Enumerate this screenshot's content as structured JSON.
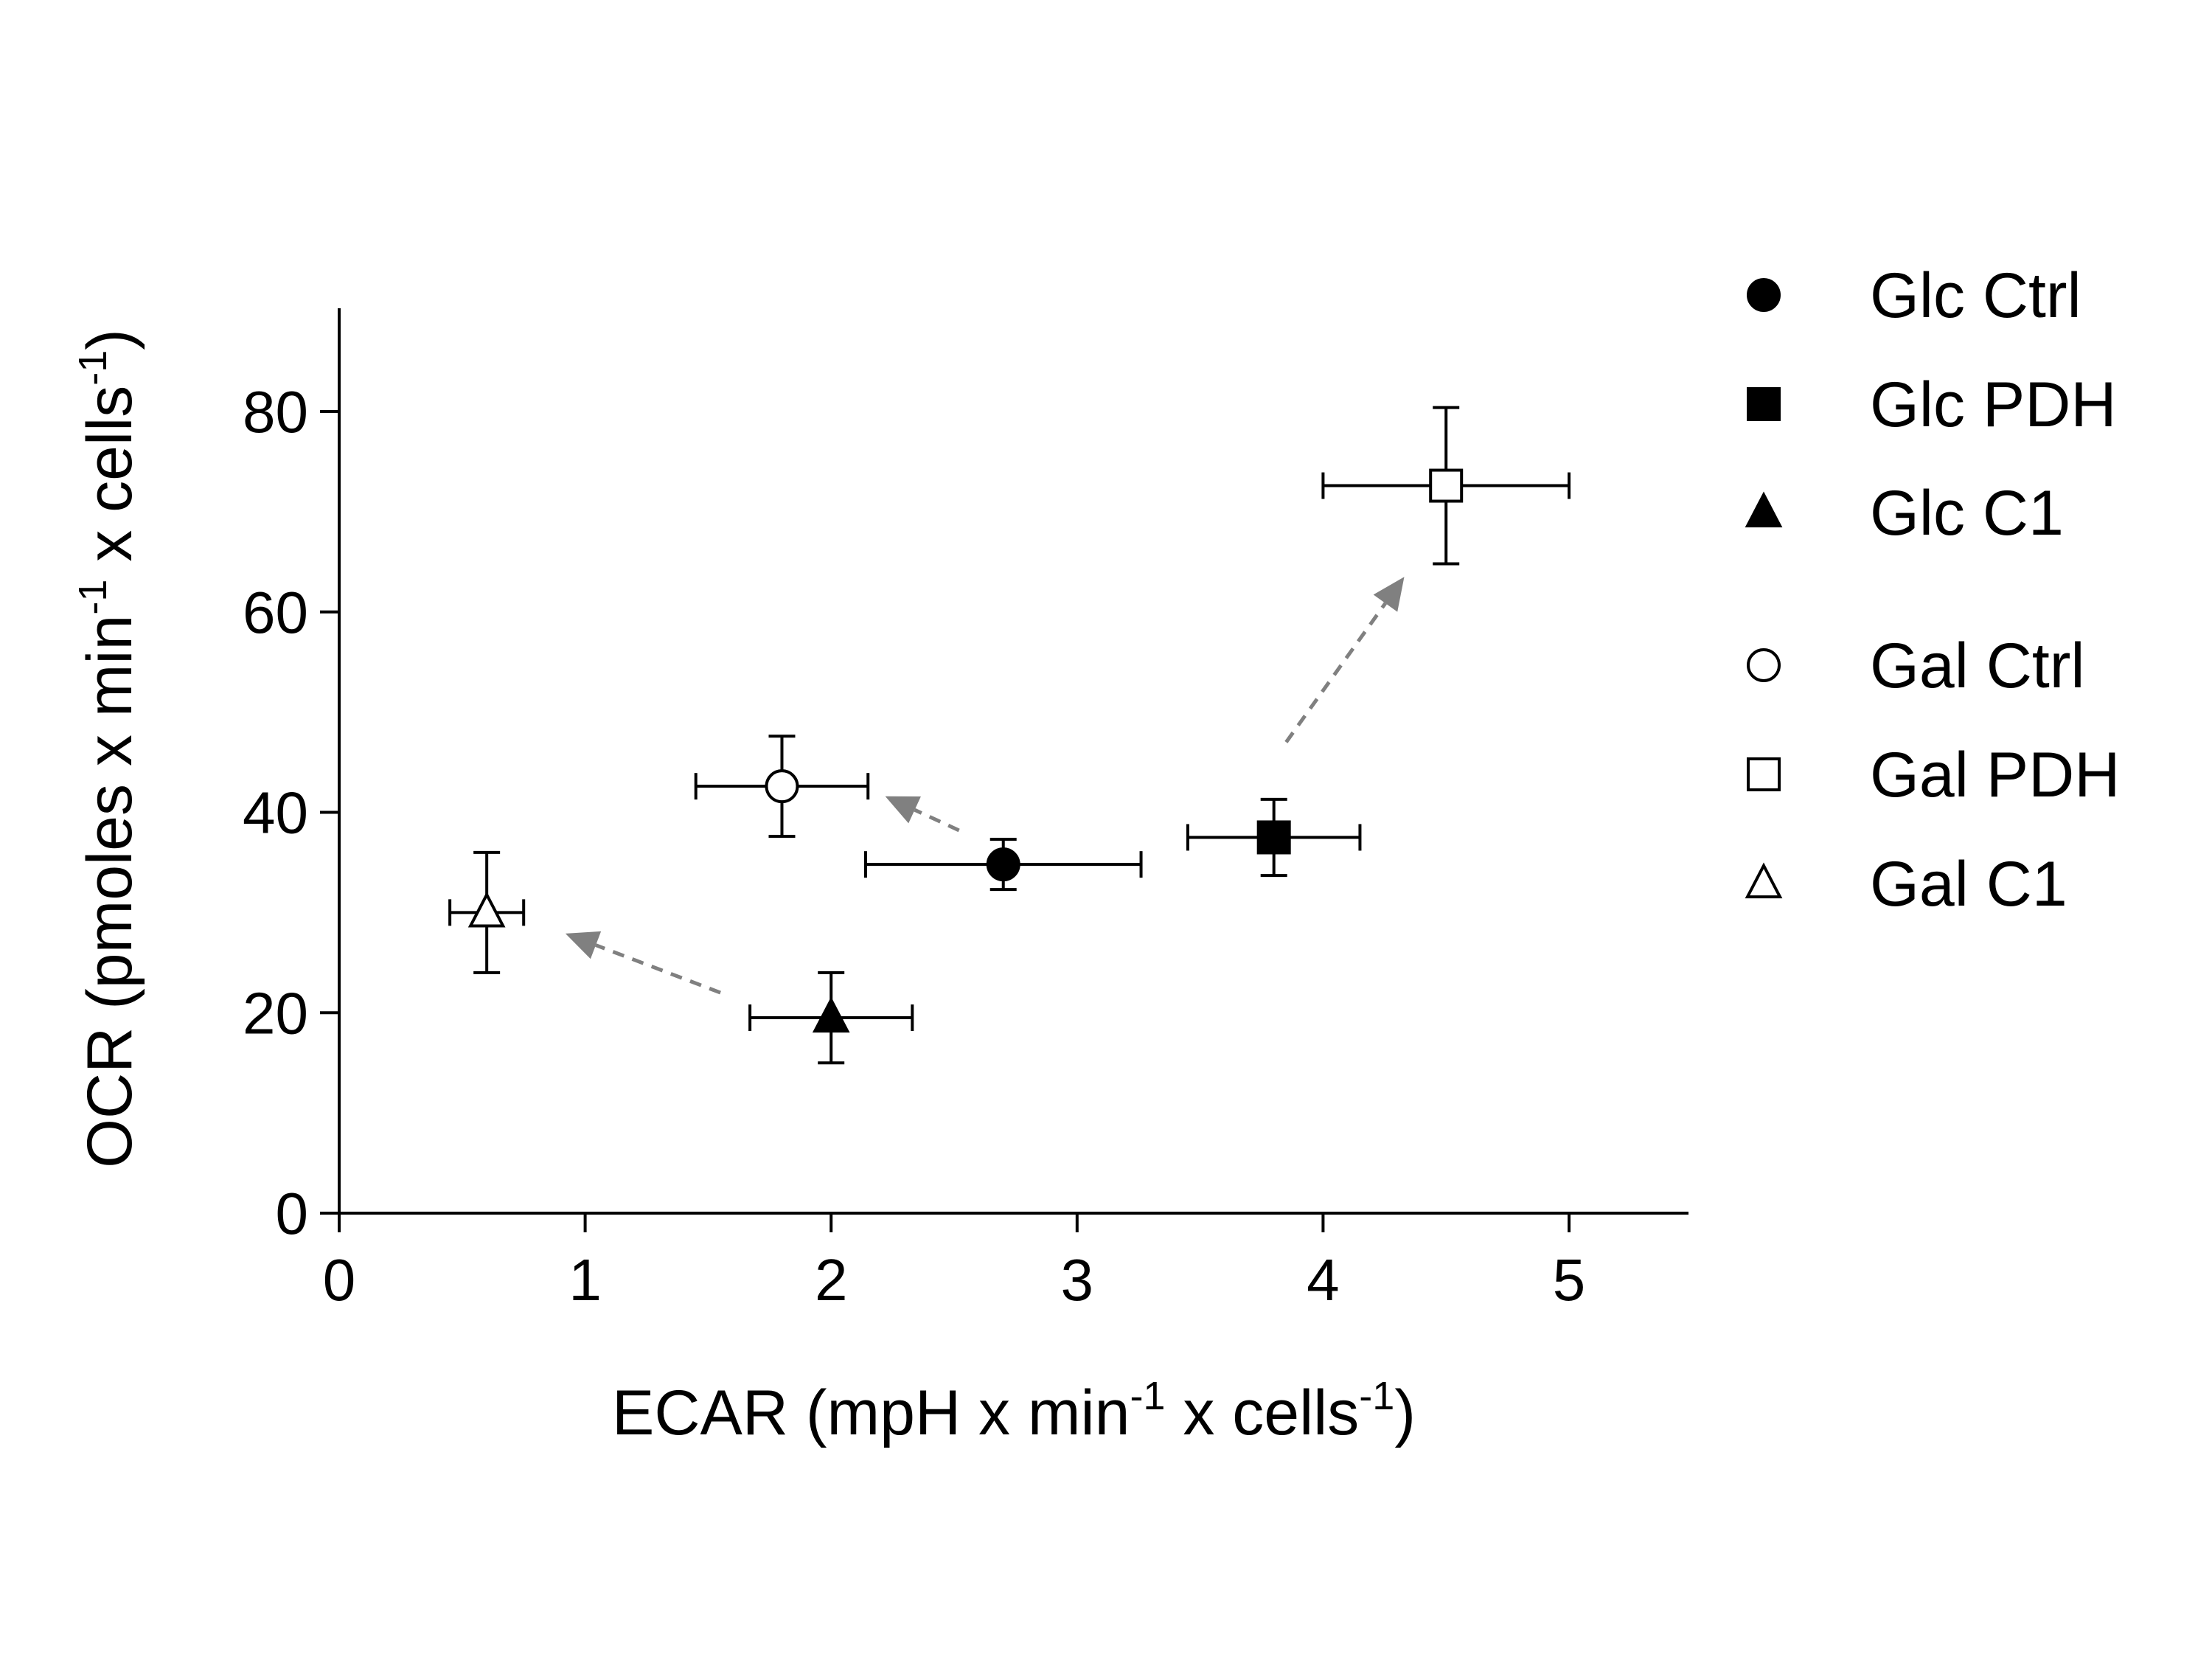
{
  "chart_data": {
    "type": "scatter",
    "title": "",
    "xlabel": {
      "base": "ECAR (mpH x min",
      "sup1": "-1",
      "mid": " x cells",
      "sup2": "-1",
      "end": ")"
    },
    "ylabel": {
      "base": "OCR (pmoles x min",
      "sup1": "-1",
      "mid": " x cells",
      "sup2": "-1",
      "end": ")"
    },
    "xlim": [
      0,
      5.5
    ],
    "ylim": [
      0,
      90
    ],
    "xticks": [
      0,
      1,
      2,
      3,
      4,
      5
    ],
    "yticks": [
      0,
      20,
      40,
      60,
      80
    ],
    "grid": false,
    "legend_position": "right",
    "series": [
      {
        "name": "Glc Ctrl",
        "marker": "circle",
        "filled": true,
        "x": 2.7,
        "y": 34.8,
        "xerr": 0.56,
        "yerr": 2.5
      },
      {
        "name": "Glc PDH",
        "marker": "square",
        "filled": true,
        "x": 3.8,
        "y": 37.5,
        "xerr": 0.35,
        "yerr": 3.8
      },
      {
        "name": "Glc C1",
        "marker": "triangle",
        "filled": true,
        "x": 2.0,
        "y": 19.5,
        "xerr": 0.33,
        "yerr": 4.5
      },
      {
        "name": "Gal Ctrl",
        "marker": "circle",
        "filled": false,
        "x": 1.8,
        "y": 42.6,
        "xerr": 0.35,
        "yerr": 5.0
      },
      {
        "name": "Gal PDH",
        "marker": "square",
        "filled": false,
        "x": 4.5,
        "y": 72.6,
        "xerr": 0.5,
        "yerr": 7.8
      },
      {
        "name": "Gal C1",
        "marker": "triangle",
        "filled": false,
        "x": 0.6,
        "y": 30.0,
        "xerr": 0.15,
        "yerr": 6.0
      }
    ],
    "arrows": [
      {
        "from": [
          2.52,
          38.2
        ],
        "to": [
          2.22,
          41.6
        ]
      },
      {
        "from": [
          3.85,
          47.0
        ],
        "to": [
          4.33,
          63.5
        ]
      },
      {
        "from": [
          1.55,
          22.0
        ],
        "to": [
          0.92,
          27.9
        ]
      }
    ],
    "colors": {
      "marker": "#000000",
      "arrow": "#808080",
      "axis": "#000000"
    }
  }
}
